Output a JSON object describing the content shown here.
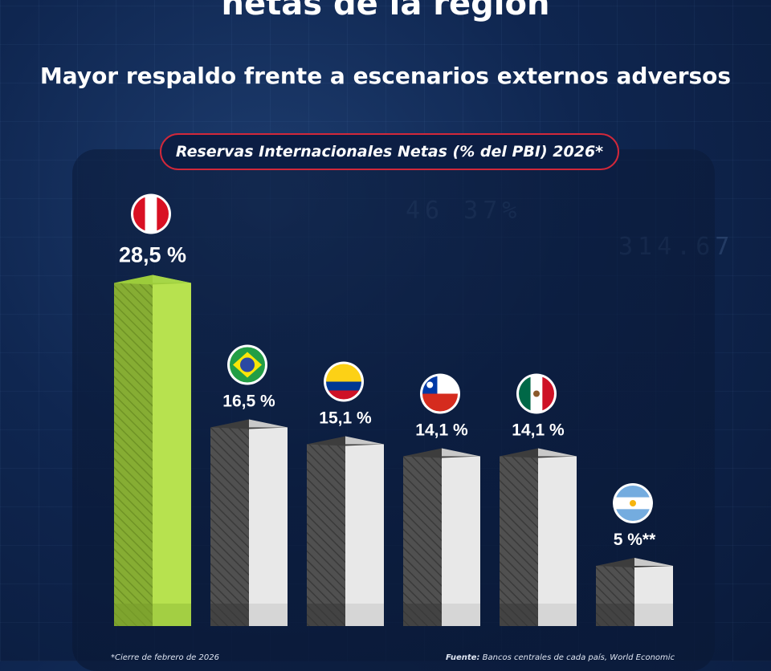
{
  "headline": "netas de la región",
  "subtitle": "Mayor respaldo frente a escenarios externos adversos",
  "chart_data": {
    "type": "bar",
    "title": "Reservas Internacionales Netas (% del PBI) 2026*",
    "categories": [
      "Perú",
      "Brasil",
      "Colombia",
      "Chile",
      "México",
      "Argentina"
    ],
    "values": [
      28.5,
      16.5,
      15.1,
      14.1,
      14.1,
      5
    ],
    "labels": [
      "28,5 %",
      "16,5 %",
      "15,1 %",
      "14,1 %",
      "14,1 %",
      "5 %**"
    ],
    "flags": [
      "peru-flag-icon",
      "brazil-flag-icon",
      "colombia-flag-icon",
      "chile-flag-icon",
      "mexico-flag-icon",
      "argentina-flag-icon"
    ],
    "highlight_color": "#b7e24f",
    "bar_color": "#e8e8e8",
    "xlabel": "",
    "ylabel": ""
  },
  "footnotes": {
    "left": "*Cierre de febrero de 2026",
    "right_label": "Fuente:",
    "right_text": "Bancos centrales de cada país, World Economic"
  },
  "colors": {
    "accent": "#d2283a",
    "background": "#0f2650"
  }
}
